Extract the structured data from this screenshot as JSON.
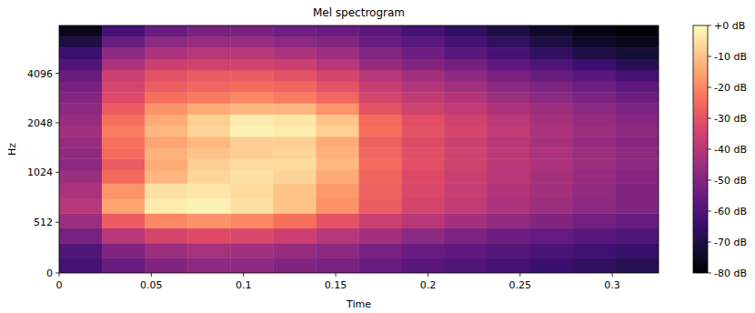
{
  "chart_data": {
    "type": "heatmap",
    "title": "Mel spectrogram",
    "x_label": "Time",
    "y_label": "Hz",
    "log": "y",
    "xlim": [
      0,
      0.3251
    ],
    "xticks": [
      0,
      0.05,
      0.1,
      0.15,
      0.2,
      0.25,
      0.3
    ],
    "ylim": [
      0,
      8000
    ],
    "yticks": [
      0,
      512,
      1024,
      2048,
      4096
    ],
    "x_bins": [
      0,
      0.0232,
      0.0464,
      0.0697,
      0.0929,
      0.1161,
      0.1393,
      0.1625,
      0.1858,
      0.209,
      0.2322,
      0.2554,
      0.2786,
      0.3019,
      0.3251
    ],
    "y_bins": [
      0,
      151,
      302,
      453,
      603,
      754,
      905,
      1059,
      1238,
      1446,
      1689,
      1974,
      2306,
      2694,
      3147,
      3677,
      4295,
      5018,
      5863,
      6850,
      8000
    ],
    "values": [
      [
        -62,
        -55,
        -50,
        -48,
        -48,
        -50,
        -52,
        -55,
        -58,
        -60,
        -62,
        -64,
        -66,
        -68
      ],
      [
        -60,
        -50,
        -45,
        -43,
        -44,
        -46,
        -48,
        -52,
        -55,
        -57,
        -59,
        -61,
        -63,
        -65
      ],
      [
        -52,
        -40,
        -34,
        -32,
        -33,
        -36,
        -40,
        -44,
        -48,
        -51,
        -54,
        -56,
        -58,
        -60
      ],
      [
        -45,
        -28,
        -20,
        -18,
        -20,
        -24,
        -30,
        -36,
        -40,
        -44,
        -47,
        -50,
        -53,
        -55
      ],
      [
        -40,
        -15,
        -3,
        -2,
        -5,
        -10,
        -18,
        -28,
        -34,
        -38,
        -42,
        -45,
        -48,
        -50
      ],
      [
        -42,
        -18,
        -5,
        -4,
        -6,
        -10,
        -17,
        -27,
        -33,
        -37,
        -41,
        -44,
        -47,
        -50
      ],
      [
        -45,
        -25,
        -12,
        -7,
        -5,
        -7,
        -14,
        -26,
        -32,
        -36,
        -40,
        -43,
        -46,
        -49
      ],
      [
        -48,
        -28,
        -14,
        -8,
        -6,
        -6,
        -12,
        -25,
        -31,
        -35,
        -39,
        -42,
        -45,
        -48
      ],
      [
        -47,
        -25,
        -13,
        -10,
        -8,
        -7,
        -13,
        -26,
        -31,
        -35,
        -39,
        -42,
        -45,
        -48
      ],
      [
        -46,
        -24,
        -15,
        -12,
        -8,
        -8,
        -14,
        -27,
        -32,
        -36,
        -40,
        -43,
        -46,
        -49
      ],
      [
        -44,
        -22,
        -12,
        -7,
        -2,
        -3,
        -8,
        -24,
        -30,
        -34,
        -38,
        -42,
        -45,
        -48
      ],
      [
        -46,
        -24,
        -14,
        -8,
        -3,
        -4,
        -10,
        -25,
        -31,
        -35,
        -39,
        -43,
        -46,
        -49
      ],
      [
        -48,
        -28,
        -18,
        -14,
        -12,
        -12,
        -18,
        -30,
        -35,
        -38,
        -42,
        -45,
        -48,
        -51
      ],
      [
        -50,
        -32,
        -24,
        -22,
        -20,
        -22,
        -26,
        -34,
        -38,
        -41,
        -45,
        -48,
        -51,
        -54
      ],
      [
        -52,
        -34,
        -28,
        -26,
        -25,
        -26,
        -30,
        -37,
        -41,
        -44,
        -48,
        -51,
        -54,
        -57
      ],
      [
        -55,
        -36,
        -30,
        -28,
        -28,
        -30,
        -34,
        -40,
        -44,
        -48,
        -52,
        -55,
        -58,
        -62
      ],
      [
        -60,
        -42,
        -36,
        -35,
        -35,
        -36,
        -40,
        -46,
        -50,
        -53,
        -57,
        -60,
        -64,
        -68
      ],
      [
        -64,
        -48,
        -42,
        -40,
        -40,
        -42,
        -45,
        -50,
        -54,
        -58,
        -62,
        -66,
        -70,
        -72
      ],
      [
        -70,
        -55,
        -48,
        -46,
        -46,
        -48,
        -50,
        -55,
        -58,
        -62,
        -66,
        -70,
        -74,
        -76
      ],
      [
        -76,
        -62,
        -55,
        -52,
        -52,
        -54,
        -55,
        -58,
        -62,
        -66,
        -70,
        -74,
        -77,
        -79
      ]
    ],
    "colorbar": {
      "range": [
        -80,
        0
      ],
      "ticks": [
        {
          "value": 0,
          "label": "+0 dB"
        },
        {
          "value": -10,
          "label": "-10 dB"
        },
        {
          "value": -20,
          "label": "-20 dB"
        },
        {
          "value": -30,
          "label": "-30 dB"
        },
        {
          "value": -40,
          "label": "-40 dB"
        },
        {
          "value": -50,
          "label": "-50 dB"
        },
        {
          "value": -60,
          "label": "-60 dB"
        },
        {
          "value": -70,
          "label": "-70 dB"
        },
        {
          "value": -80,
          "label": "-80 dB"
        }
      ]
    }
  }
}
